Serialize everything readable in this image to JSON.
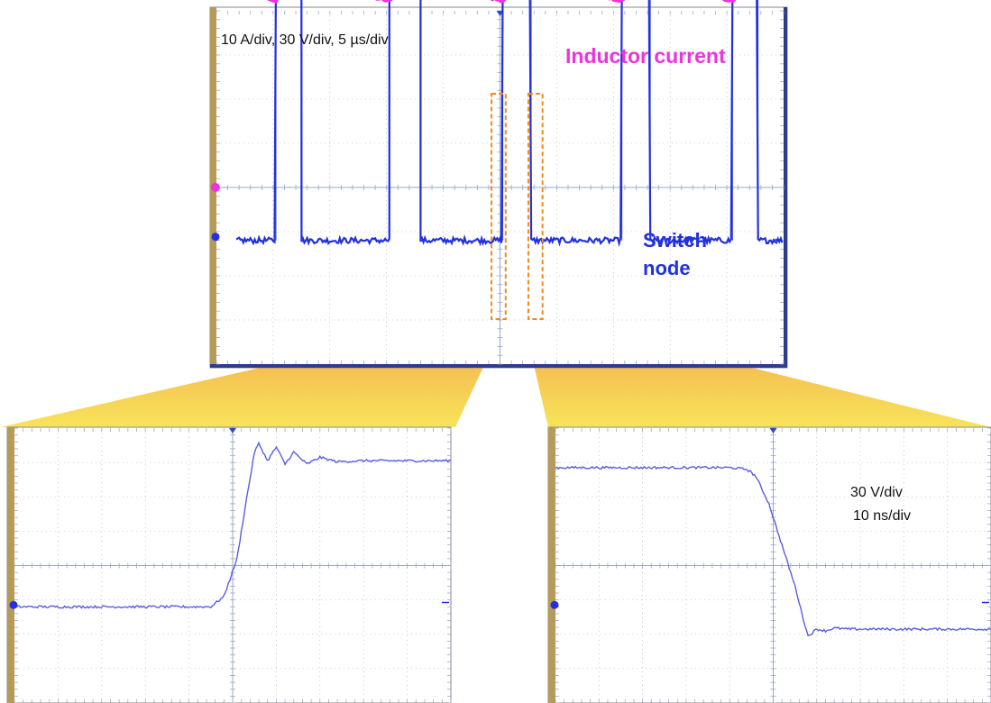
{
  "colors": {
    "inductor_trace": "#ee33dd",
    "switch_trace": "#2230e0",
    "zoom_trace": "#5a5ee0",
    "zoom_window": "#f08c1e",
    "funnel": "#f4a94a",
    "frame_bar": "#b59a5a",
    "grid": "#9aa8c8"
  },
  "annotations": {
    "main_settings": "10 A/div, 30 V/div, 5 µs/div",
    "inductor_label": "Inductor current",
    "switch_label_line1": "Switch",
    "switch_label_line2": "node",
    "zoom_volts_per_div": "30 V/div",
    "zoom_time_per_div": "10 ns/div"
  },
  "chart_data": [
    {
      "type": "line",
      "title": "",
      "settings": "10 A/div, 30 V/div, 5 µs/div",
      "x_divisions": 10,
      "y_divisions": 8,
      "grid": true,
      "series": [
        {
          "name": "Inductor current",
          "color": "#ee33dd",
          "waveform": "triangular ripple",
          "peaks_x_div": [
            1.55,
            3.6,
            5.75,
            7.75,
            9.65
          ],
          "valleys_x_div": [
            1.05,
            3.05,
            5.05,
            7.15,
            9.1
          ],
          "peak_div": 5.1,
          "valley_div": 4.25
        },
        {
          "name": "Switch node",
          "color": "#2230e0",
          "waveform": "square pulses",
          "high_intervals_x_div": [
            [
              1.05,
              1.5
            ],
            [
              3.05,
              3.6
            ],
            [
              5.05,
              5.55
            ],
            [
              7.15,
              7.65
            ],
            [
              9.1,
              9.55
            ]
          ],
          "high_level_div": 4.75,
          "low_level_div": -1.2
        }
      ],
      "zoom_windows_x_div": [
        [
          4.85,
          5.1
        ],
        [
          5.5,
          5.75
        ]
      ]
    },
    {
      "type": "line",
      "title": "",
      "settings": "30 V/div, 10 ns/div",
      "x_divisions": 10,
      "y_divisions": 8,
      "grid": true,
      "series": [
        {
          "name": "",
          "color": "#5a5ee0",
          "edge": "rising",
          "x_ns": [
            0,
            45,
            48,
            51,
            53,
            55,
            56,
            58,
            60,
            62,
            64,
            67,
            70,
            74,
            80,
            100
          ],
          "y_div": [
            -1.2,
            -1.2,
            -0.9,
            0.2,
            1.8,
            3.3,
            3.55,
            3.05,
            3.45,
            2.95,
            3.3,
            2.95,
            3.15,
            3.02,
            3.05,
            3.05
          ]
        }
      ]
    },
    {
      "type": "line",
      "title": "",
      "settings": "30 V/div, 10 ns/div",
      "x_divisions": 10,
      "y_divisions": 8,
      "grid": true,
      "series": [
        {
          "name": "",
          "color": "#5a5ee0",
          "edge": "falling",
          "x_ns": [
            0,
            40,
            44,
            46,
            49,
            52,
            55,
            57,
            58,
            60,
            62,
            64,
            67,
            100
          ],
          "y_div": [
            2.85,
            2.85,
            2.8,
            2.6,
            1.8,
            0.6,
            -0.6,
            -1.6,
            -2.05,
            -1.85,
            -1.9,
            -1.82,
            -1.85,
            -1.85
          ]
        }
      ]
    }
  ]
}
